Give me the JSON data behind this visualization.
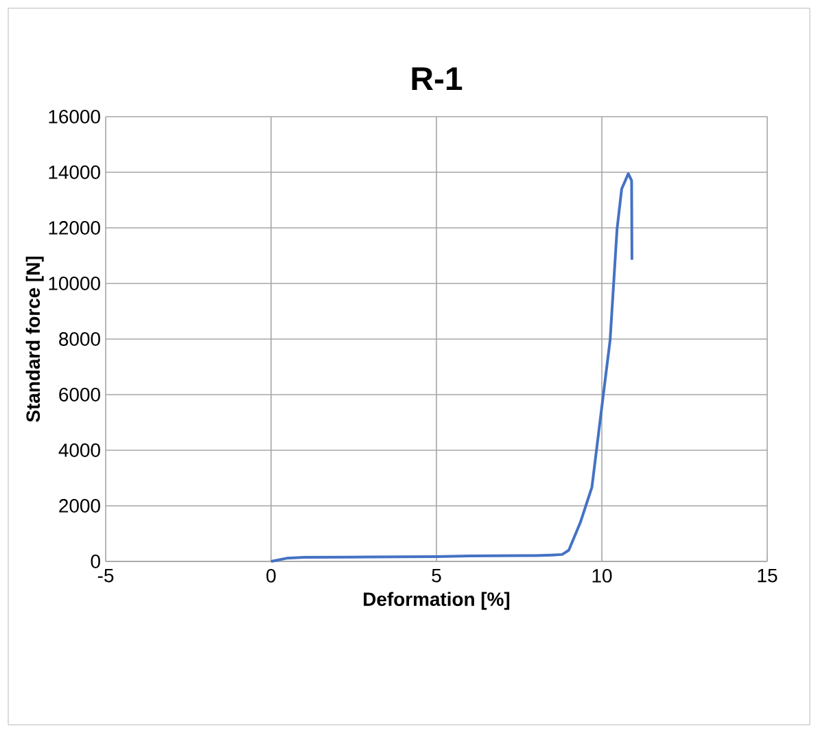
{
  "chart_data": {
    "type": "line",
    "title": "R-1",
    "xlabel": "Deformation [%]",
    "ylabel": "Standard force [N]",
    "xlim": [
      -5,
      15
    ],
    "xticks": [
      -5,
      0,
      5,
      10,
      15
    ],
    "ylim": [
      0,
      16000
    ],
    "yticks": [
      0,
      2000,
      4000,
      6000,
      8000,
      10000,
      12000,
      14000,
      16000
    ],
    "grid": true,
    "series": [
      {
        "color": "#4472c4",
        "x": [
          0,
          0.5,
          1,
          3,
          5,
          6,
          8,
          8.5,
          8.8,
          9.0,
          9.35,
          9.7,
          10.04,
          10.25,
          10.46,
          10.6,
          10.8,
          10.9,
          10.91
        ],
        "values": [
          0,
          120,
          150,
          160,
          170,
          200,
          210,
          230,
          250,
          400,
          1400,
          2670,
          5950,
          7960,
          11960,
          13400,
          13950,
          13700,
          10850
        ]
      }
    ]
  }
}
